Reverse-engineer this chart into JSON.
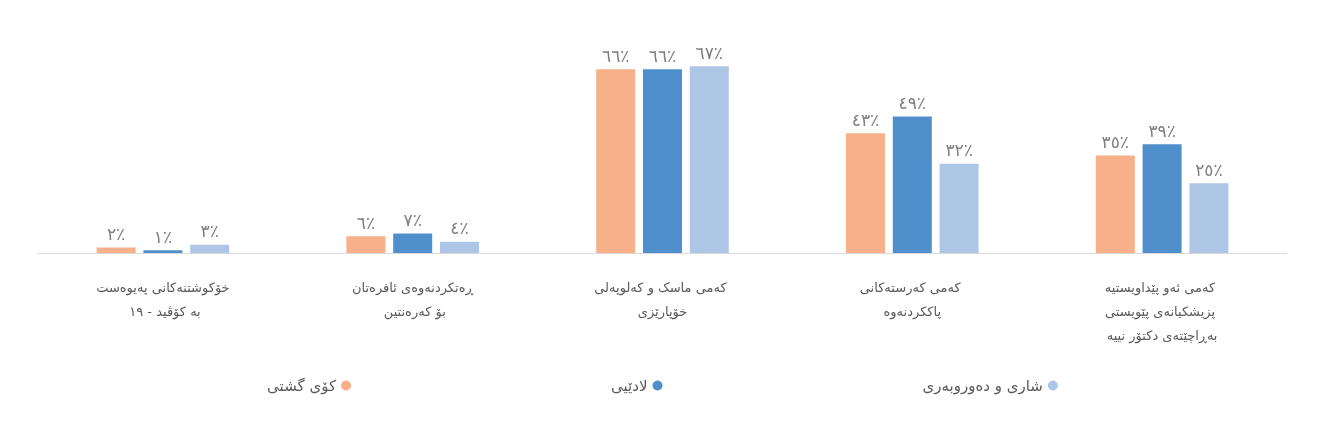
{
  "chart_data": {
    "type": "bar",
    "categories": [
      "خۆکوشتنەکانی پەیوەست بە کۆڤید - ١٩",
      "ڕەتکردنەوەی ئافرەتان بۆ کەرەنتین",
      "کەمی ماسک و کەلوپەلی خۆپارێزی",
      "کەمی کەرستەکانی پاککردنەوە",
      "کەمی ئەو پێداویستیە پزیشکیانەی پێویستی بەڕاچێتەی دکتۆر نییە"
    ],
    "series": [
      {
        "name": "کۆی گشتی",
        "color": "#f8b08a",
        "values": [
          2,
          6,
          66,
          43,
          35
        ],
        "value_labels": [
          "٢٪",
          "٦٪",
          "٦٦٪",
          "٤٣٪",
          "٣٥٪"
        ]
      },
      {
        "name": "لادێیی",
        "color": "#4e8fcc",
        "values": [
          1,
          7,
          66,
          49,
          39
        ],
        "value_labels": [
          "١٪",
          "٧٪",
          "٦٦٪",
          "٤٩٪",
          "٣٩٪"
        ]
      },
      {
        "name": "شاری و دەوروبەری",
        "color": "#adc6e6",
        "values": [
          3,
          4,
          67,
          32,
          25
        ],
        "value_labels": [
          "٣٪",
          "٤٪",
          "٦٧٪",
          "٣٢٪",
          "٢٥٪"
        ]
      }
    ],
    "legend": "bottom"
  }
}
